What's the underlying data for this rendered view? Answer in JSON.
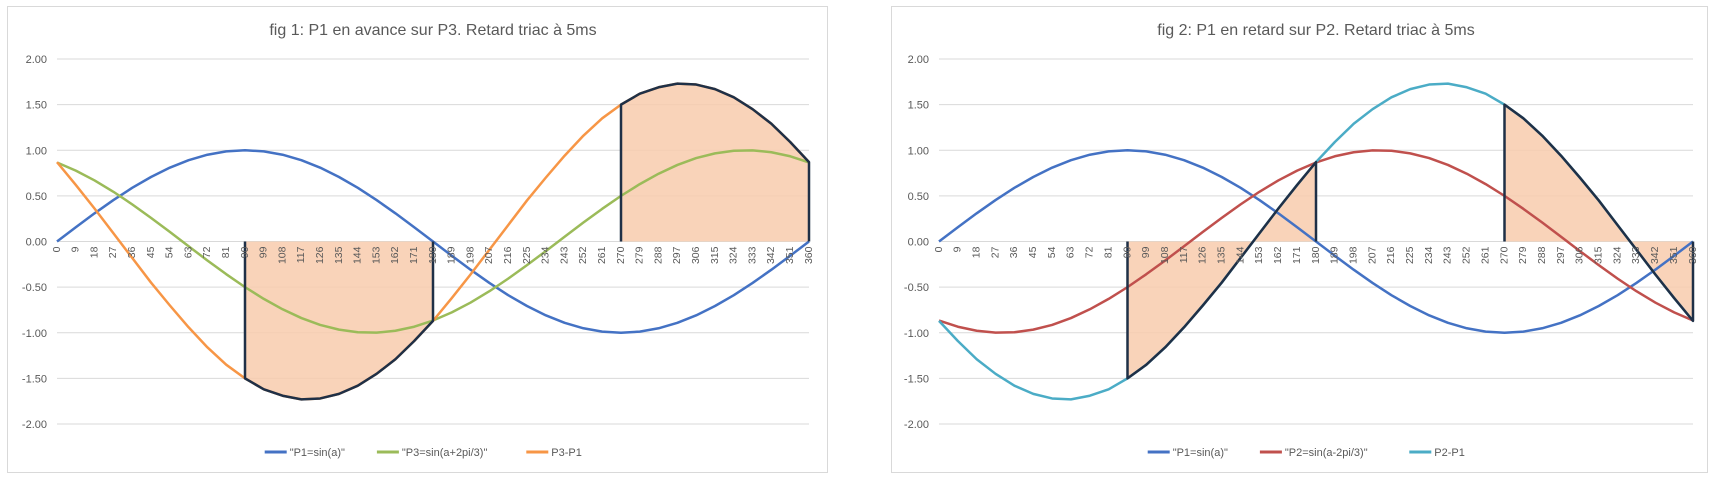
{
  "chart_data": [
    {
      "type": "line",
      "title": "fig 1: P1 en avance sur P3. Retard triac à 5ms",
      "xlabel": "",
      "ylabel": "",
      "ylim": [
        -2,
        2
      ],
      "yticks": [
        "2.00",
        "1.50",
        "1.00",
        "0.50",
        "0.00",
        "-0.50",
        "-1.00",
        "-1.50",
        "-2.00"
      ],
      "x": [
        0,
        9,
        18,
        27,
        36,
        45,
        54,
        63,
        72,
        81,
        90,
        99,
        108,
        117,
        126,
        135,
        144,
        153,
        162,
        171,
        180,
        189,
        198,
        207,
        216,
        225,
        234,
        243,
        252,
        261,
        270,
        279,
        288,
        297,
        306,
        315,
        324,
        333,
        342,
        351,
        360
      ],
      "grid": true,
      "legend_position": "bottom",
      "series": [
        {
          "name": "\"P1=sin(a)\"",
          "color": "#4472C4",
          "values": [
            0,
            0.156,
            0.309,
            0.454,
            0.588,
            0.707,
            0.809,
            0.891,
            0.951,
            0.988,
            1,
            0.988,
            0.951,
            0.891,
            0.809,
            0.707,
            0.588,
            0.454,
            0.309,
            0.156,
            0,
            -0.156,
            -0.309,
            -0.454,
            -0.588,
            -0.707,
            -0.809,
            -0.891,
            -0.951,
            -0.988,
            -1,
            -0.988,
            -0.951,
            -0.891,
            -0.809,
            -0.707,
            -0.588,
            -0.454,
            -0.309,
            -0.156,
            0
          ]
        },
        {
          "name": "\"P3=sin(a+2pi/3)\"",
          "color": "#9BBB59",
          "values": [
            0.866,
            0.777,
            0.669,
            0.545,
            0.407,
            0.259,
            0.105,
            -0.052,
            -0.208,
            -0.358,
            -0.5,
            -0.629,
            -0.743,
            -0.839,
            -0.914,
            -0.966,
            -0.995,
            -0.999,
            -0.978,
            -0.934,
            -0.866,
            -0.777,
            -0.669,
            -0.545,
            -0.407,
            -0.259,
            -0.105,
            0.052,
            0.208,
            0.358,
            0.5,
            0.629,
            0.743,
            0.839,
            0.914,
            0.966,
            0.995,
            0.999,
            0.978,
            0.934,
            0.866
          ]
        },
        {
          "name": "P3-P1",
          "color": "#F79646",
          "values": [
            0.87,
            0.62,
            0.36,
            0.09,
            -0.18,
            -0.45,
            -0.7,
            -0.94,
            -1.16,
            -1.35,
            -1.5,
            -1.62,
            -1.69,
            -1.73,
            -1.72,
            -1.67,
            -1.58,
            -1.45,
            -1.29,
            -1.09,
            -0.87,
            -0.62,
            -0.36,
            -0.09,
            0.18,
            0.45,
            0.7,
            0.94,
            1.16,
            1.35,
            1.5,
            1.62,
            1.69,
            1.73,
            1.72,
            1.67,
            1.58,
            1.45,
            1.29,
            1.09,
            0.87
          ]
        }
      ],
      "shaded_series": "P3-P1",
      "shaded_ranges": [
        [
          90,
          180
        ],
        [
          270,
          360
        ]
      ],
      "shade_color": "#F8CBAD",
      "outline_color": "#1F3047"
    },
    {
      "type": "line",
      "title": "fig 2: P1 en retard sur P2. Retard triac à 5ms",
      "xlabel": "",
      "ylabel": "",
      "ylim": [
        -2,
        2
      ],
      "yticks": [
        "2.00",
        "1.50",
        "1.00",
        "0.50",
        "0.00",
        "-0.50",
        "-1.00",
        "-1.50",
        "-2.00"
      ],
      "x": [
        0,
        9,
        18,
        27,
        36,
        45,
        54,
        63,
        72,
        81,
        90,
        99,
        108,
        117,
        126,
        135,
        144,
        153,
        162,
        171,
        180,
        189,
        198,
        207,
        216,
        225,
        234,
        243,
        252,
        261,
        270,
        279,
        288,
        297,
        306,
        315,
        324,
        333,
        342,
        351,
        360
      ],
      "grid": true,
      "legend_position": "bottom",
      "series": [
        {
          "name": "\"P1=sin(a)\"",
          "color": "#4472C4",
          "values": [
            0,
            0.156,
            0.309,
            0.454,
            0.588,
            0.707,
            0.809,
            0.891,
            0.951,
            0.988,
            1,
            0.988,
            0.951,
            0.891,
            0.809,
            0.707,
            0.588,
            0.454,
            0.309,
            0.156,
            0,
            -0.156,
            -0.309,
            -0.454,
            -0.588,
            -0.707,
            -0.809,
            -0.891,
            -0.951,
            -0.988,
            -1,
            -0.988,
            -0.951,
            -0.891,
            -0.809,
            -0.707,
            -0.588,
            -0.454,
            -0.309,
            -0.156,
            0
          ]
        },
        {
          "name": "\"P2=sin(a-2pi/3)\"",
          "color": "#C0504D",
          "values": [
            -0.866,
            -0.934,
            -0.978,
            -0.999,
            -0.995,
            -0.966,
            -0.914,
            -0.839,
            -0.743,
            -0.629,
            -0.5,
            -0.358,
            -0.208,
            -0.052,
            0.105,
            0.259,
            0.407,
            0.545,
            0.669,
            0.777,
            0.866,
            0.934,
            0.978,
            0.999,
            0.995,
            0.966,
            0.914,
            0.839,
            0.743,
            0.629,
            0.5,
            0.358,
            0.208,
            0.052,
            -0.105,
            -0.259,
            -0.407,
            -0.545,
            -0.669,
            -0.777,
            -0.866
          ]
        },
        {
          "name": "P2-P1",
          "color": "#4BACC6",
          "values": [
            -0.87,
            -1.09,
            -1.29,
            -1.45,
            -1.58,
            -1.67,
            -1.72,
            -1.73,
            -1.69,
            -1.62,
            -1.5,
            -1.35,
            -1.16,
            -0.94,
            -0.7,
            -0.45,
            -0.18,
            0.09,
            0.36,
            0.62,
            0.87,
            1.09,
            1.29,
            1.45,
            1.58,
            1.67,
            1.72,
            1.73,
            1.69,
            1.62,
            1.5,
            1.35,
            1.16,
            0.94,
            0.7,
            0.45,
            0.18,
            -0.09,
            -0.36,
            -0.62,
            -0.87
          ]
        }
      ],
      "shaded_series": "P2-P1",
      "shaded_ranges": [
        [
          90,
          180
        ],
        [
          270,
          360
        ]
      ],
      "shade_color": "#F8CBAD",
      "outline_color": "#1F3047"
    }
  ]
}
